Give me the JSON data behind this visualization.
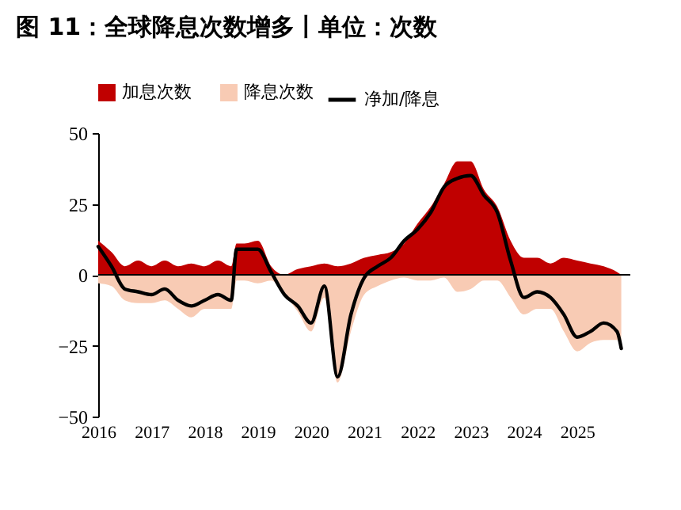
{
  "chart_data": {
    "type": "area",
    "title": "图 11：全球降息次数增多丨单位：次数",
    "x": [
      2016,
      2016.25,
      2016.5,
      2016.75,
      2017,
      2017.25,
      2017.5,
      2017.75,
      2018,
      2018.25,
      2018.5,
      2018.6,
      2018.75,
      2019,
      2019.25,
      2019.5,
      2019.75,
      2020,
      2020.25,
      2020.5,
      2020.75,
      2021,
      2021.25,
      2021.5,
      2021.75,
      2022,
      2022.25,
      2022.5,
      2022.75,
      2023,
      2023.25,
      2023.5,
      2023.75,
      2024,
      2024.25,
      2024.5,
      2024.75,
      2025,
      2025.25,
      2025.5,
      2025.75,
      2025.83
    ],
    "series": [
      {
        "name": "加息次数",
        "color": "#c00000",
        "values": [
          12,
          8,
          3,
          5,
          3,
          5,
          3,
          4,
          3,
          5,
          3,
          11,
          11,
          12,
          3,
          0,
          2,
          3,
          4,
          3,
          4,
          6,
          7,
          8,
          11,
          18,
          24,
          32,
          40,
          40,
          30,
          24,
          12,
          6,
          6,
          4,
          6,
          5,
          4,
          3,
          1,
          0
        ]
      },
      {
        "name": "降息次数",
        "color": "#f8cbb4",
        "values": [
          -3,
          -4,
          -9,
          -10,
          -10,
          -9,
          -12,
          -15,
          -12,
          -12,
          -12,
          -2,
          -2,
          -3,
          -2,
          -7,
          -13,
          -20,
          -8,
          -38,
          -20,
          -7,
          -4,
          -2,
          -1,
          -2,
          -2,
          -1,
          -6,
          -5,
          -2,
          -2,
          -8,
          -14,
          -12,
          -12,
          -20,
          -27,
          -24,
          -23,
          -23,
          -26
        ]
      },
      {
        "name": "净加/降息",
        "type": "line",
        "color": "#000000",
        "values": [
          10,
          3,
          -5,
          -6,
          -7,
          -5,
          -9,
          -11,
          -9,
          -7,
          -9,
          9,
          9,
          9,
          1,
          -7,
          -11,
          -17,
          -4,
          -36,
          -14,
          -1,
          3,
          6,
          12,
          16,
          22,
          31,
          34,
          35,
          28,
          22,
          5,
          -8,
          -6,
          -8,
          -14,
          -22,
          -20,
          -17,
          -20,
          -26
        ]
      }
    ],
    "xlim": [
      2016,
      2026
    ],
    "xticks": [
      2016,
      2017,
      2018,
      2019,
      2020,
      2021,
      2022,
      2023,
      2024,
      2025
    ],
    "ylim": [
      -50,
      50
    ],
    "yticks": [
      -50,
      -25,
      0,
      25,
      50
    ],
    "ref_lines": [
      {
        "axis": "y",
        "value": 0,
        "color": "#000000"
      }
    ],
    "legend": "top",
    "grid": false
  }
}
